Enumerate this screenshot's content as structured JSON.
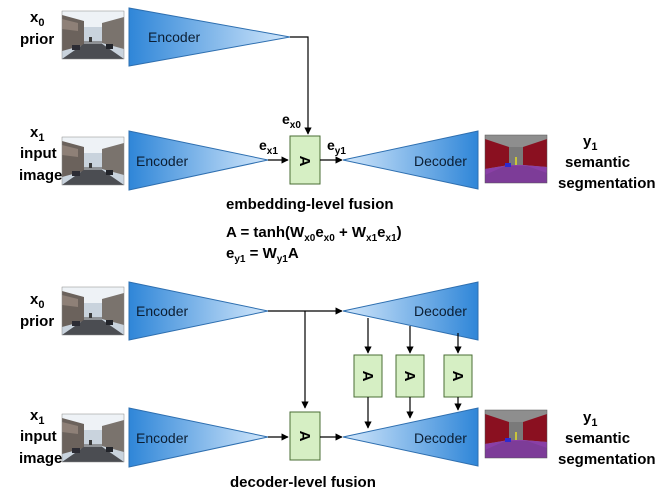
{
  "colors": {
    "block_light": "#cfe5fb",
    "block_dark": "#3d8fdd",
    "block_stroke": "#2e6fb0",
    "attention_fill": "#d6efc4",
    "attention_stroke": "#4a6d34",
    "arrow": "#000000"
  },
  "top": {
    "x0_label": "x0",
    "x0_sub": "0",
    "x0_word": "prior",
    "x1_label": "x1",
    "x1_sub": "1",
    "x1_word1": "input",
    "x1_word2": "image",
    "encoder_prior_label": "Encoder",
    "encoder_input_label": "Encoder",
    "decoder_label": "Decoder",
    "attention_label": "A",
    "ex0": "e",
    "ex0_sub": "x0",
    "ex1": "e",
    "ex1_sub": "x1",
    "ey1": "e",
    "ey1_sub": "y1",
    "y1_main": "y",
    "y1_sub": "1",
    "output_word1": "semantic",
    "output_word2": "segmentation",
    "fusion_caption": "embedding-level fusion",
    "eq1_prefix": "A = tanh(W",
    "eq1_w0sub": "x0",
    "eq1_e": "e",
    "eq1_e0sub": "x0",
    "eq1_plus": " + W",
    "eq1_w1sub": "x1",
    "eq1_e2": "e",
    "eq1_e1sub": "x1",
    "eq1_close": ")",
    "eq2_e": "e",
    "eq2_esub": "y1",
    "eq2_mid": " = W",
    "eq2_wsub": "y1",
    "eq2_end": "A"
  },
  "bottom": {
    "x0_label": "x",
    "x0_sub": "0",
    "x0_word": "prior",
    "x1_label": "x",
    "x1_sub": "1",
    "x1_word1": "input",
    "x1_word2": "image",
    "encoder_prior_label": "Encoder",
    "encoder_input_label": "Encoder",
    "decoder_prior_label": "Decoder",
    "decoder_output_label": "Decoder",
    "attention_labels": [
      "A",
      "A",
      "A",
      "A"
    ],
    "y1_main": "y",
    "y1_sub": "1",
    "output_word1": "semantic",
    "output_word2": "segmentation",
    "fusion_caption": "decoder-level fusion"
  }
}
